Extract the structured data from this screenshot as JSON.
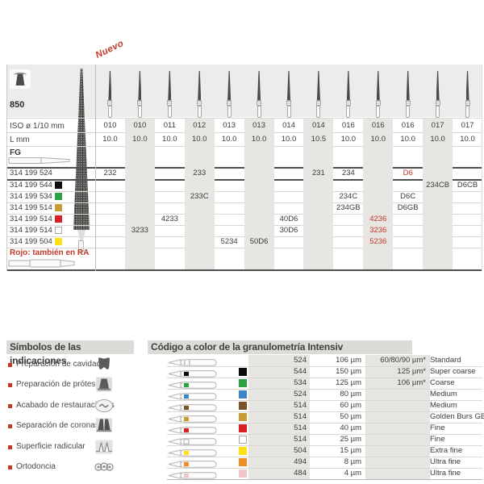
{
  "catalog": {
    "figure": "850",
    "new_label": "Nuevo",
    "iso_label": "ISO ø 1/10 mm",
    "l_label": "L mm",
    "shank_label": "FG",
    "iso_values": [
      "010",
      "010",
      "011",
      "012",
      "013",
      "013",
      "014",
      "014",
      "016",
      "016",
      "016",
      "017",
      "017"
    ],
    "l_values": [
      "10.0",
      "10.0",
      "10.0",
      "10.0",
      "10.0",
      "10.0",
      "10.0",
      "10.5",
      "10.0",
      "10.0",
      "10.0",
      "10.0",
      "10.0"
    ],
    "accent_red": "#c0392b",
    "rows": [
      {
        "code": "314 199 524",
        "color": null,
        "cells": {
          "1": "232",
          "4": "233",
          "8": "231",
          "9": "234",
          "11": "D6"
        },
        "red": [
          "11"
        ]
      },
      {
        "code": "314 199 544",
        "color": "#0c0c0c",
        "cells": {
          "12": "234CB",
          "13": "D6CB"
        },
        "red": []
      },
      {
        "code": "314 199 534",
        "color": "#2ba143",
        "cells": {
          "4": "233C",
          "9": "234C",
          "11": "D6C"
        },
        "red": []
      },
      {
        "code": "314 199 514",
        "color": "#c79b36",
        "cells": {
          "9": "234GB",
          "11": "D6GB"
        },
        "red": []
      },
      {
        "code": "314 199 514",
        "color": "#d62127",
        "cells": {
          "3": "4233",
          "7": "40D6",
          "10": "4236"
        },
        "red": [
          "10"
        ]
      },
      {
        "code": "314 199 514",
        "color": "#ffffff",
        "cells": {
          "2": "3233",
          "7": "30D6",
          "10": "3236"
        },
        "red": [
          "10"
        ]
      },
      {
        "code": "314 199 504",
        "color": "#ffdf17",
        "cells": {
          "5": "5234",
          "6": "50D6",
          "10": "5236"
        },
        "red": [
          "10"
        ]
      }
    ],
    "footnote": "Rojo: también en RA"
  },
  "symbols": {
    "title": "Símbolos de las indicaciones",
    "items": [
      {
        "label": "Preparación de cavidades",
        "icon": "cavity-icon"
      },
      {
        "label": "Preparación de prótesis",
        "icon": "prosthesis-icon"
      },
      {
        "label": "Acabado de restauraciones",
        "icon": "finishing-icon"
      },
      {
        "label": "Separación de coronas",
        "icon": "crown-separation-icon"
      },
      {
        "label": "Superficie radicular",
        "icon": "root-surface-icon"
      },
      {
        "label": "Ortodoncia",
        "icon": "orthodontics-icon"
      }
    ]
  },
  "grit": {
    "title": "Código a color de la granulometría Intensiv",
    "rows": [
      {
        "color": null,
        "code": "524",
        "grit": "106 µm",
        "alt": "60/80/90 µm*",
        "label": "Standard"
      },
      {
        "color": "#0c0c0c",
        "code": "544",
        "grit": "150 µm",
        "alt": "125 µm*",
        "label": "Super coarse"
      },
      {
        "color": "#2ba143",
        "code": "534",
        "grit": "125 µm",
        "alt": "106 µm*",
        "label": "Coarse"
      },
      {
        "color": "#3d87c8",
        "code": "524",
        "grit": "80 µm",
        "alt": "",
        "label": "Medium"
      },
      {
        "color": "#7a5428",
        "code": "514",
        "grit": "60 µm",
        "alt": "",
        "label": "Medium"
      },
      {
        "color": "#c79b36",
        "code": "514",
        "grit": "50 µm",
        "alt": "",
        "label": "Golden Burs GB"
      },
      {
        "color": "#d62127",
        "code": "514",
        "grit": "40 µm",
        "alt": "",
        "label": "Fine"
      },
      {
        "color": "#ffffff",
        "code": "514",
        "grit": "25 µm",
        "alt": "",
        "label": "Fine"
      },
      {
        "color": "#ffdf17",
        "code": "504",
        "grit": "15 µm",
        "alt": "",
        "label": "Extra fine"
      },
      {
        "color": "#ee8d27",
        "code": "494",
        "grit": "8 µm",
        "alt": "",
        "label": "Ultra fine"
      },
      {
        "color": "#f3c6ce",
        "code": "484",
        "grit": "4 µm",
        "alt": "",
        "label": "Ultra fine"
      }
    ]
  }
}
